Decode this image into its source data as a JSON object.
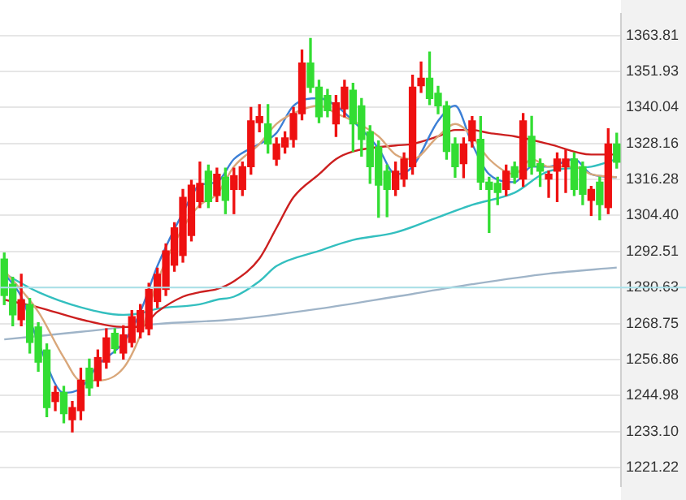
{
  "chart_data": {
    "type": "candlestick",
    "categories": [
      null,
      null,
      null,
      null,
      null,
      null,
      null,
      null,
      null,
      null,
      null,
      null,
      null,
      null,
      null,
      null,
      null,
      null,
      null,
      null,
      null,
      null,
      null,
      null,
      null,
      null,
      null,
      null,
      null,
      null,
      null,
      null,
      null,
      null,
      null,
      null,
      null,
      null,
      null,
      null,
      null,
      null,
      null,
      null,
      null,
      null,
      null,
      null,
      null,
      null,
      null,
      null,
      null,
      null,
      null,
      null,
      null,
      null,
      null,
      null,
      null,
      null,
      null,
      null,
      null,
      null,
      null,
      null,
      null,
      null,
      null,
      null,
      null
    ],
    "ohlc": [
      [
        1290,
        1292,
        1275,
        1278
      ],
      [
        1281.7,
        1284,
        1268,
        1271.6
      ],
      [
        1270,
        1285,
        1268,
        1276.6
      ],
      [
        1275,
        1277,
        1259,
        1262.5
      ],
      [
        1267.6,
        1269,
        1253,
        1256
      ],
      [
        1260,
        1262,
        1238,
        1241
      ],
      [
        1243,
        1248,
        1240,
        1246
      ],
      [
        1246,
        1248,
        1236,
        1239
      ],
      [
        1237,
        1243,
        1233,
        1241
      ],
      [
        1240,
        1254,
        1237,
        1250
      ],
      [
        1254,
        1257,
        1245,
        1247.5
      ],
      [
        1250,
        1260,
        1248,
        1257.5
      ],
      [
        1256,
        1267,
        1254,
        1264
      ],
      [
        1265.5,
        1267,
        1259,
        1260.5
      ],
      [
        1259,
        1268,
        1257,
        1265
      ],
      [
        1262.5,
        1273,
        1261,
        1271
      ],
      [
        1266,
        1275,
        1264,
        1273
      ],
      [
        1267,
        1282,
        1265,
        1280
      ],
      [
        1276,
        1287,
        1274,
        1285
      ],
      [
        1280,
        1295,
        1278,
        1292.7
      ],
      [
        1288,
        1302,
        1286,
        1300.3
      ],
      [
        1291.2,
        1313,
        1289,
        1310.4
      ],
      [
        1297.8,
        1316,
        1296,
        1314.4
      ],
      [
        1309,
        1322,
        1307,
        1315
      ],
      [
        1319,
        1321,
        1307,
        1309
      ],
      [
        1311,
        1320,
        1309,
        1318
      ],
      [
        1317,
        1320,
        1305,
        1309.4
      ],
      [
        1313,
        1320,
        1305,
        1317.5
      ],
      [
        1313,
        1322,
        1311,
        1320.5
      ],
      [
        1320.5,
        1340,
        1318,
        1335.6
      ],
      [
        1335,
        1341,
        1332,
        1337
      ],
      [
        1334.6,
        1341,
        1325,
        1328
      ],
      [
        1323,
        1330,
        1321,
        1328
      ],
      [
        1327,
        1332,
        1325,
        1330
      ],
      [
        1329.5,
        1340,
        1327,
        1338
      ],
      [
        1338,
        1359,
        1336,
        1354.7
      ],
      [
        1354.7,
        1362.8,
        1345,
        1346.7
      ],
      [
        1346.7,
        1349,
        1335,
        1337
      ],
      [
        1344,
        1346,
        1337,
        1339
      ],
      [
        1334.6,
        1344,
        1330.5,
        1341.6
      ],
      [
        1339.6,
        1349,
        1337,
        1346.7
      ],
      [
        1345.7,
        1348,
        1325.5,
        1334.6
      ],
      [
        1340.6,
        1343,
        1324,
        1329.5
      ],
      [
        1332,
        1334,
        1315,
        1320.5
      ],
      [
        1327,
        1329,
        1303.8,
        1314.4
      ],
      [
        1319,
        1321,
        1304,
        1313
      ],
      [
        1313,
        1322,
        1311,
        1319
      ],
      [
        1316.4,
        1325,
        1314,
        1323
      ],
      [
        1320.5,
        1350.7,
        1318,
        1346.7
      ],
      [
        1347.2,
        1355,
        1345,
        1349.7
      ],
      [
        1349.7,
        1358.3,
        1341,
        1343
      ],
      [
        1344.7,
        1347,
        1338,
        1340.6
      ],
      [
        1340.6,
        1342,
        1323,
        1325.5
      ],
      [
        1328,
        1330,
        1317,
        1320.5
      ],
      [
        1321.5,
        1330,
        1316.9,
        1328
      ],
      [
        1329,
        1337,
        1327,
        1335.6
      ],
      [
        1329.5,
        1337,
        1313,
        1315.4
      ],
      [
        1315.4,
        1317,
        1298.8,
        1313
      ],
      [
        1315,
        1317,
        1308,
        1312
      ],
      [
        1313,
        1321,
        1311,
        1319
      ],
      [
        1320.5,
        1322,
        1315,
        1317
      ],
      [
        1316.4,
        1338,
        1314,
        1335.6
      ],
      [
        1330.5,
        1337.1,
        1318,
        1320.5
      ],
      [
        1321.5,
        1323,
        1314,
        1319
      ],
      [
        1316.4,
        1319,
        1310.4,
        1318
      ],
      [
        1319,
        1325,
        1309,
        1323
      ],
      [
        1320.5,
        1326,
        1312,
        1323
      ],
      [
        1323,
        1325,
        1311,
        1313
      ],
      [
        1320.5,
        1322,
        1308,
        1311.4
      ],
      [
        1309.4,
        1314,
        1304.4,
        1313
      ],
      [
        1315.4,
        1317,
        1303,
        1308
      ],
      [
        1307,
        1333,
        1305,
        1328
      ],
      [
        1328,
        1331.5,
        1320,
        1322
      ]
    ],
    "series": [
      {
        "type": "line",
        "color": "#d9a77a",
        "values": [
          1286.2,
          null,
          null,
          null,
          1272.6,
          null,
          null,
          1257.5,
          null,
          1249.9,
          null,
          1249.9,
          null,
          null,
          1254.0,
          null,
          1265.0,
          null,
          1282.7,
          null,
          null,
          1300.3,
          null,
          1307.9,
          null,
          1311.4,
          null,
          1320.5,
          null,
          null,
          1328.0,
          null,
          1334.6,
          null,
          1338.1,
          null,
          null,
          1340.6,
          null,
          1338.1,
          null,
          1335.6,
          null,
          null,
          1330.5,
          null,
          1324.5,
          null,
          1323.0,
          null,
          null,
          1330.5,
          null,
          1334.6,
          null,
          1330.5,
          null,
          1323.0,
          null,
          null,
          1318.0,
          null,
          1323.0,
          null,
          1320.5,
          null,
          null,
          1320.5,
          null,
          1318.0,
          null,
          null,
          1317.0
        ]
      },
      {
        "type": "line",
        "color": "#3c7fd6",
        "values": [
          1285.2,
          null,
          1277.6,
          null,
          1262.5,
          null,
          null,
          1245.9,
          null,
          1247.4,
          null,
          1255.0,
          null,
          null,
          1262.5,
          null,
          1272.6,
          null,
          1287.7,
          null,
          null,
          1305.3,
          null,
          1314.4,
          null,
          1315.4,
          null,
          1323.0,
          null,
          null,
          1328.0,
          null,
          1331.6,
          null,
          1340.6,
          null,
          null,
          1343.1,
          null,
          1340.6,
          null,
          1335.6,
          null,
          null,
          1326.5,
          null,
          1318.0,
          null,
          1320.5,
          null,
          null,
          1335.6,
          null,
          1340.6,
          null,
          1328.0,
          null,
          1318.0,
          null,
          null,
          1315.4,
          null,
          1320.5,
          null,
          1320.5,
          null,
          null,
          1323.0,
          null,
          1318.0,
          null,
          null,
          1317.0
        ]
      },
      {
        "type": "line",
        "color": "#cc1f1f",
        "values": [
          1276.6,
          null,
          null,
          null,
          1274.1,
          null,
          null,
          null,
          null,
          1270.1,
          null,
          null,
          null,
          null,
          1267.6,
          null,
          1267.6,
          null,
          1272.6,
          null,
          null,
          1277.6,
          null,
          1279.1,
          null,
          1280.1,
          null,
          1282.7,
          null,
          null,
          1290.2,
          null,
          1300.3,
          null,
          1310.4,
          null,
          null,
          1318.0,
          null,
          1323.0,
          null,
          1325.5,
          null,
          null,
          null,
          null,
          1327.5,
          null,
          1328.0,
          null,
          null,
          1330.5,
          null,
          1332.6,
          null,
          1332.6,
          null,
          1331.6,
          null,
          null,
          1330.5,
          null,
          null,
          null,
          1328.0,
          null,
          null,
          null,
          null,
          1324.5,
          null,
          null,
          1324.5
        ]
      },
      {
        "type": "line",
        "color": "#33bfbf",
        "values": [
          1285.2,
          null,
          null,
          null,
          1279.1,
          null,
          null,
          null,
          null,
          1274.1,
          null,
          null,
          null,
          null,
          1271.6,
          null,
          1272.1,
          null,
          1273.6,
          null,
          null,
          null,
          null,
          1275.1,
          null,
          1276.6,
          null,
          1277.6,
          null,
          null,
          1282.7,
          null,
          1287.7,
          null,
          null,
          null,
          null,
          1292.7,
          null,
          null,
          null,
          1296.3,
          null,
          null,
          null,
          null,
          1298.8,
          null,
          null,
          null,
          null,
          1303.8,
          null,
          null,
          null,
          1307.9,
          null,
          null,
          null,
          null,
          1311.9,
          null,
          null,
          null,
          1319.0,
          null,
          null,
          null,
          null,
          1320.5,
          null,
          null,
          1323.0
        ]
      },
      {
        "type": "line",
        "color": "#9fb4c8",
        "values": [
          1263.5,
          null,
          null,
          null,
          null,
          null,
          null,
          null,
          null,
          1266.0,
          null,
          null,
          null,
          null,
          null,
          null,
          null,
          null,
          1268.6,
          null,
          null,
          null,
          null,
          null,
          null,
          null,
          null,
          1270.1,
          null,
          null,
          null,
          null,
          null,
          null,
          null,
          null,
          null,
          1273.6,
          null,
          null,
          null,
          null,
          null,
          null,
          null,
          null,
          1277.6,
          null,
          null,
          null,
          null,
          null,
          null,
          null,
          null,
          1281.7,
          null,
          null,
          null,
          null,
          null,
          null,
          null,
          null,
          1285.2,
          null,
          null,
          null,
          null,
          null,
          null,
          null,
          1287.2
        ]
      }
    ],
    "ylim": [
      1215,
      1371
    ],
    "yticks": [
      1221.22,
      {
        "value": 1233.1,
        "label": "1233.10"
      },
      1244.98,
      1256.86,
      1268.75,
      1280.63,
      1292.51,
      {
        "value": 1304.4,
        "label": "1304.40"
      },
      1316.28,
      1328.16,
      1340.04,
      1351.93,
      1363.81
    ],
    "ref_lines": [
      {
        "axis": "y",
        "value": 1280.63,
        "color": "#a8e0e8"
      }
    ],
    "grid": "y",
    "legend": false,
    "tick_labels": "y",
    "marker": "none"
  }
}
